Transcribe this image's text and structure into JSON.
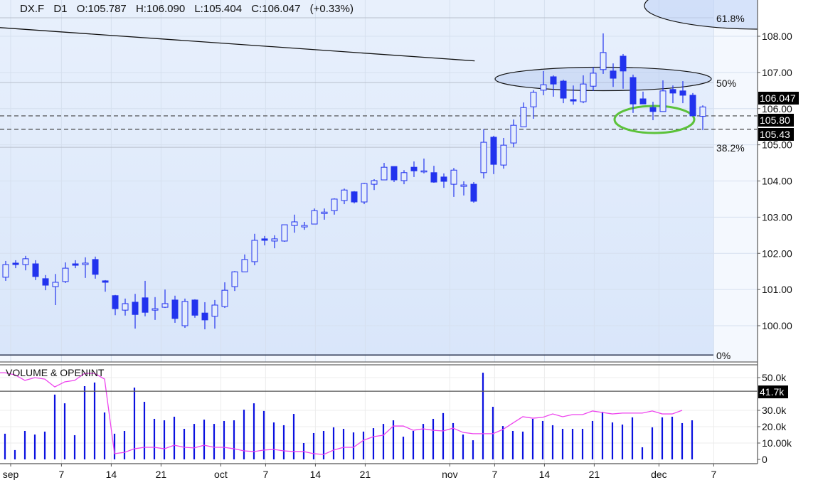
{
  "header": {
    "symbol": "DX.F",
    "interval": "D1",
    "open": "O:105.787",
    "high": "H:106.090",
    "low": "L:105.404",
    "close": "C:106.047",
    "change": "(+0.33%)"
  },
  "colors": {
    "candle": "#2233ee",
    "volume": "#0a10e0",
    "open_interest": "#ee44ee",
    "highlight_ellipse": "#5cc23a",
    "shade": "#dde9fb",
    "label_bg": "#000000"
  },
  "volume_pane": {
    "title": "VOLUME & OPENINT",
    "current_label": "41.7k",
    "current_value": 41.7
  },
  "chart_data": [
    {
      "type": "candlestick",
      "title": "",
      "ylim": [
        99.1,
        109
      ],
      "grid": true,
      "y_ticks": [
        "100.00",
        "101.00",
        "102.00",
        "103.00",
        "104.00",
        "105.00",
        "106.00",
        "107.00",
        "108.00"
      ],
      "y_tick_values": [
        100,
        101,
        102,
        103,
        104,
        105,
        106,
        107,
        108
      ],
      "x_ticks": [
        {
          "label": "sep",
          "bar": 0.5
        },
        {
          "label": "7",
          "bar": 5.6
        },
        {
          "label": "14",
          "bar": 10.6
        },
        {
          "label": "21",
          "bar": 15.6
        },
        {
          "label": "oct",
          "bar": 21.6
        },
        {
          "label": "7",
          "bar": 26.1
        },
        {
          "label": "14",
          "bar": 31.1
        },
        {
          "label": "21",
          "bar": 36.1
        },
        {
          "label": "nov",
          "bar": 44.6
        },
        {
          "label": "7",
          "bar": 49.1
        },
        {
          "label": "14",
          "bar": 54.1
        },
        {
          "label": "21",
          "bar": 59.1
        },
        {
          "label": "dec",
          "bar": 65.6
        },
        {
          "label": "7",
          "bar": 71.1
        }
      ],
      "ohlc": [
        [
          101.34,
          101.79,
          101.24,
          101.69
        ],
        [
          101.73,
          101.81,
          101.59,
          101.69
        ],
        [
          101.69,
          101.93,
          101.53,
          101.85
        ],
        [
          101.71,
          101.81,
          101.26,
          101.36
        ],
        [
          101.3,
          101.4,
          100.98,
          101.12
        ],
        [
          101.08,
          101.43,
          100.57,
          101.2
        ],
        [
          101.22,
          101.75,
          101.18,
          101.59
        ],
        [
          101.71,
          101.81,
          101.59,
          101.67
        ],
        [
          101.69,
          101.89,
          101.32,
          101.73
        ],
        [
          101.83,
          101.91,
          101.3,
          101.42
        ],
        [
          101.24,
          101.26,
          100.94,
          101.2
        ],
        [
          100.83,
          100.85,
          100.29,
          100.47
        ],
        [
          100.43,
          100.75,
          100.28,
          100.61
        ],
        [
          100.65,
          100.88,
          99.92,
          100.31
        ],
        [
          100.77,
          101.24,
          100.26,
          100.37
        ],
        [
          100.43,
          100.79,
          100.16,
          100.47
        ],
        [
          100.51,
          101.0,
          100.49,
          100.61
        ],
        [
          100.71,
          100.83,
          100.08,
          100.2
        ],
        [
          100.0,
          100.75,
          99.94,
          100.67
        ],
        [
          100.71,
          100.73,
          100.22,
          100.29
        ],
        [
          100.35,
          100.65,
          99.9,
          100.16
        ],
        [
          100.26,
          100.71,
          99.92,
          100.57
        ],
        [
          100.53,
          101.2,
          100.49,
          100.98
        ],
        [
          101.08,
          101.51,
          100.96,
          101.49
        ],
        [
          101.49,
          101.97,
          101.49,
          101.83
        ],
        [
          101.77,
          102.54,
          101.67,
          102.36
        ],
        [
          102.4,
          102.48,
          102.22,
          102.36
        ],
        [
          102.34,
          102.5,
          102.14,
          102.4
        ],
        [
          102.34,
          102.79,
          102.32,
          102.79
        ],
        [
          102.77,
          103.07,
          102.57,
          102.87
        ],
        [
          102.73,
          102.87,
          102.65,
          102.77
        ],
        [
          102.81,
          103.24,
          102.81,
          103.18
        ],
        [
          103.1,
          103.24,
          102.93,
          103.14
        ],
        [
          103.18,
          103.52,
          103.07,
          103.5
        ],
        [
          103.46,
          103.79,
          103.36,
          103.75
        ],
        [
          103.7,
          103.72,
          103.38,
          103.42
        ],
        [
          103.42,
          103.95,
          103.36,
          103.93
        ],
        [
          103.91,
          104.05,
          103.75,
          104.01
        ],
        [
          104.03,
          104.5,
          104.03,
          104.38
        ],
        [
          104.4,
          104.4,
          103.97,
          104.03
        ],
        [
          104.01,
          104.3,
          103.91,
          104.23
        ],
        [
          104.38,
          104.54,
          104.11,
          104.28
        ],
        [
          104.25,
          104.62,
          104.21,
          104.28
        ],
        [
          104.23,
          104.42,
          103.95,
          103.97
        ],
        [
          104.11,
          104.21,
          103.81,
          103.99
        ],
        [
          103.91,
          104.36,
          103.56,
          104.3
        ],
        [
          103.85,
          103.99,
          103.6,
          103.89
        ],
        [
          103.91,
          103.97,
          103.4,
          103.44
        ],
        [
          104.23,
          105.43,
          104.07,
          105.07
        ],
        [
          105.21,
          105.25,
          104.19,
          104.46
        ],
        [
          104.44,
          105.19,
          104.34,
          104.99
        ],
        [
          105.05,
          105.7,
          104.93,
          105.54
        ],
        [
          105.5,
          106.17,
          105.5,
          106.03
        ],
        [
          106.05,
          106.51,
          105.72,
          106.45
        ],
        [
          106.51,
          107.04,
          106.37,
          106.66
        ],
        [
          106.88,
          106.92,
          106.33,
          106.68
        ],
        [
          106.76,
          106.8,
          106.15,
          106.29
        ],
        [
          106.25,
          106.64,
          106.11,
          106.21
        ],
        [
          106.19,
          106.92,
          106.15,
          106.68
        ],
        [
          106.62,
          107.15,
          106.49,
          106.98
        ],
        [
          107.08,
          108.08,
          106.96,
          107.55
        ],
        [
          107.04,
          107.25,
          106.6,
          106.84
        ],
        [
          107.45,
          107.51,
          106.55,
          107.04
        ],
        [
          106.86,
          106.94,
          105.88,
          106.13
        ],
        [
          106.27,
          106.47,
          106.13,
          106.13
        ],
        [
          106.03,
          106.19,
          105.68,
          105.92
        ],
        [
          105.92,
          106.78,
          105.92,
          106.49
        ],
        [
          106.53,
          106.64,
          106.15,
          106.43
        ],
        [
          106.49,
          106.76,
          106.15,
          106.37
        ],
        [
          106.37,
          106.43,
          105.8,
          105.8
        ],
        [
          105.787,
          106.09,
          105.404,
          106.047
        ]
      ],
      "last_price_label": "106.047",
      "last_price": 106.047,
      "horizontal_levels": [
        {
          "label": "105.80",
          "value": 105.8
        },
        {
          "label": "105.43",
          "value": 105.43
        }
      ],
      "fibonacci": [
        {
          "label": "61.8%",
          "value": 108.51
        },
        {
          "label": "50%",
          "value": 106.72
        },
        {
          "label": "38.2%",
          "value": 104.93
        },
        {
          "label": "0%",
          "value": 99.19
        }
      ],
      "trendline": {
        "from": {
          "bar": -0.6,
          "price": 108.24
        },
        "to": {
          "bar": 47.1,
          "price": 107.32
        }
      }
    },
    {
      "type": "bar+line",
      "title": "VOLUME & OPENINT",
      "ylim": [
        0,
        55
      ],
      "y_ticks": [
        "0",
        "10.00k",
        "20.0k",
        "30.0k",
        "50.0k"
      ],
      "y_tick_values": [
        0,
        10,
        20,
        30,
        50
      ],
      "series": [
        {
          "name": "VOLUME",
          "type": "bar",
          "values": [
            15.7,
            5.7,
            17.4,
            15.2,
            17.0,
            39.6,
            34.3,
            14.8,
            44.8,
            47.0,
            28.7,
            15.7,
            17.4,
            43.9,
            35.2,
            24.8,
            23.9,
            26.1,
            18.7,
            21.7,
            24.3,
            21.7,
            23.5,
            23.9,
            30.4,
            34.3,
            29.6,
            22.6,
            20.9,
            27.8,
            10.0,
            16.1,
            17.4,
            19.6,
            18.7,
            16.5,
            17.0,
            19.1,
            21.7,
            23.9,
            13.9,
            17.4,
            21.7,
            24.8,
            28.3,
            22.2,
            15.2,
            11.7,
            53.0,
            32.2,
            20.4,
            17.4,
            17.0,
            24.8,
            23.5,
            20.9,
            18.7,
            18.7,
            18.7,
            23.5,
            29.1,
            22.6,
            21.3,
            25.7,
            7.4,
            19.6,
            25.7,
            26.1,
            22.2,
            23.9,
            null
          ]
        },
        {
          "name": "OPENINT",
          "type": "line",
          "values": [
            53.0,
            51.7,
            48.3,
            50.0,
            49.1,
            44.3,
            47.4,
            48.3,
            52.6,
            52.6,
            49.1,
            3.5,
            4.3,
            6.5,
            7.4,
            7.4,
            6.5,
            8.7,
            7.4,
            7.0,
            8.7,
            7.4,
            7.4,
            6.5,
            5.2,
            4.8,
            5.7,
            6.1,
            5.2,
            4.8,
            4.8,
            3.5,
            3.0,
            5.7,
            7.4,
            7.4,
            11.7,
            13.9,
            14.8,
            20.4,
            20.4,
            17.8,
            18.7,
            17.8,
            17.4,
            19.1,
            16.5,
            15.7,
            15.7,
            15.7,
            18.3,
            22.2,
            26.1,
            25.2,
            25.7,
            27.8,
            26.1,
            27.4,
            27.4,
            29.6,
            28.7,
            27.8,
            28.3,
            28.3,
            28.3,
            29.6,
            27.8,
            27.8,
            30.0,
            null,
            null
          ]
        }
      ]
    }
  ]
}
